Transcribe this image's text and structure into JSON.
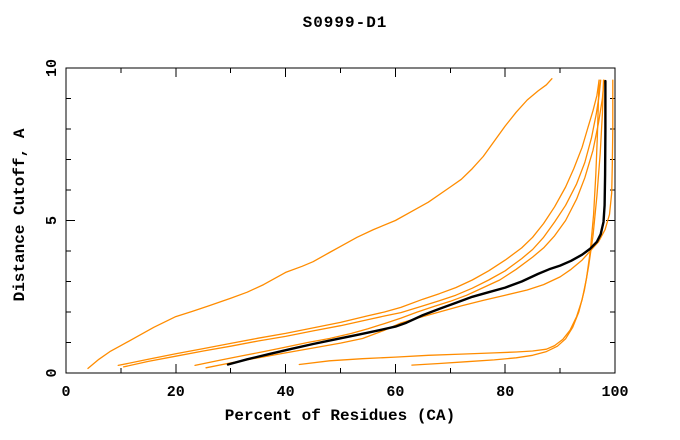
{
  "window": {
    "background": "#ffffff"
  },
  "chart_data": {
    "type": "line",
    "title": "S0999-D1",
    "xlabel": "Percent of Residues (CA)",
    "ylabel": "Distance Cutoff, A",
    "xlim": [
      0,
      100
    ],
    "ylim": [
      0,
      10
    ],
    "x_major_ticks": [
      0,
      20,
      40,
      60,
      80,
      100
    ],
    "x_minor_ticks": [
      10,
      30,
      50,
      70,
      90
    ],
    "y_major_ticks": [
      0,
      5,
      10
    ],
    "y_minor_ticks": [
      1,
      2,
      3,
      4,
      6,
      7,
      8,
      9
    ],
    "grid": false,
    "legend": "none",
    "frame": "box-with-mirrored-ticks",
    "axis_color": "#000000",
    "model_color": "#ff8c00",
    "highlight_color": "#000000",
    "series": [
      {
        "name": "model-steep",
        "color": "#ff8c00",
        "width": 1.3,
        "points": [
          [
            4,
            0.15
          ],
          [
            6,
            0.45
          ],
          [
            8,
            0.7
          ],
          [
            10,
            0.9
          ],
          [
            13,
            1.2
          ],
          [
            16,
            1.5
          ],
          [
            20,
            1.85
          ],
          [
            23,
            2.02
          ],
          [
            26,
            2.2
          ],
          [
            30,
            2.45
          ],
          [
            33,
            2.65
          ],
          [
            36,
            2.9
          ],
          [
            40,
            3.3
          ],
          [
            43,
            3.5
          ],
          [
            45,
            3.65
          ],
          [
            48,
            3.95
          ],
          [
            50,
            4.15
          ],
          [
            53,
            4.45
          ],
          [
            56,
            4.7
          ],
          [
            60,
            5.0
          ],
          [
            63,
            5.3
          ],
          [
            66,
            5.6
          ],
          [
            70,
            6.1
          ],
          [
            72,
            6.35
          ],
          [
            74,
            6.7
          ],
          [
            76,
            7.1
          ],
          [
            78,
            7.6
          ],
          [
            80,
            8.1
          ],
          [
            82,
            8.55
          ],
          [
            84,
            8.95
          ],
          [
            86,
            9.25
          ],
          [
            87.5,
            9.45
          ],
          [
            88.5,
            9.65
          ]
        ]
      },
      {
        "name": "model-b1",
        "color": "#ff8c00",
        "width": 1.3,
        "points": [
          [
            9.5,
            0.25
          ],
          [
            15,
            0.45
          ],
          [
            20,
            0.63
          ],
          [
            25,
            0.8
          ],
          [
            30,
            0.97
          ],
          [
            35,
            1.14
          ],
          [
            40,
            1.3
          ],
          [
            45,
            1.48
          ],
          [
            50,
            1.66
          ],
          [
            55,
            1.88
          ],
          [
            58,
            2.0
          ],
          [
            61,
            2.15
          ],
          [
            65,
            2.42
          ],
          [
            68,
            2.6
          ],
          [
            71,
            2.8
          ],
          [
            74,
            3.05
          ],
          [
            77,
            3.35
          ],
          [
            80,
            3.7
          ],
          [
            83,
            4.1
          ],
          [
            85,
            4.45
          ],
          [
            87,
            4.9
          ],
          [
            89,
            5.45
          ],
          [
            91,
            6.1
          ],
          [
            92.5,
            6.7
          ],
          [
            94,
            7.4
          ],
          [
            95,
            8.0
          ],
          [
            96,
            8.6
          ],
          [
            96.7,
            9.1
          ],
          [
            97.1,
            9.6
          ]
        ]
      },
      {
        "name": "model-b2",
        "color": "#ff8c00",
        "width": 1.3,
        "points": [
          [
            10.5,
            0.2
          ],
          [
            15,
            0.38
          ],
          [
            20,
            0.55
          ],
          [
            25,
            0.72
          ],
          [
            30,
            0.88
          ],
          [
            35,
            1.05
          ],
          [
            40,
            1.2
          ],
          [
            45,
            1.38
          ],
          [
            50,
            1.55
          ],
          [
            55,
            1.75
          ],
          [
            58,
            1.87
          ],
          [
            61,
            1.98
          ],
          [
            65,
            2.2
          ],
          [
            68,
            2.37
          ],
          [
            71,
            2.55
          ],
          [
            74,
            2.78
          ],
          [
            77,
            3.05
          ],
          [
            80,
            3.35
          ],
          [
            83,
            3.75
          ],
          [
            85,
            4.05
          ],
          [
            87,
            4.45
          ],
          [
            89,
            4.95
          ],
          [
            91,
            5.5
          ],
          [
            93,
            6.2
          ],
          [
            94.5,
            6.9
          ],
          [
            95.7,
            7.7
          ],
          [
            96.6,
            8.5
          ],
          [
            97.1,
            9.1
          ],
          [
            97.4,
            9.6
          ]
        ]
      },
      {
        "name": "model-c",
        "color": "#ff8c00",
        "width": 1.3,
        "points": [
          [
            23.5,
            0.25
          ],
          [
            28,
            0.42
          ],
          [
            32,
            0.56
          ],
          [
            36,
            0.7
          ],
          [
            40,
            0.85
          ],
          [
            44,
            1.0
          ],
          [
            48,
            1.13
          ],
          [
            52,
            1.3
          ],
          [
            55,
            1.45
          ],
          [
            58,
            1.62
          ],
          [
            61,
            1.8
          ],
          [
            64,
            2.0
          ],
          [
            67,
            2.18
          ],
          [
            70,
            2.35
          ],
          [
            73,
            2.55
          ],
          [
            76,
            2.8
          ],
          [
            79,
            3.05
          ],
          [
            82,
            3.4
          ],
          [
            85,
            3.8
          ],
          [
            87,
            4.1
          ],
          [
            89,
            4.5
          ],
          [
            91,
            5.0
          ],
          [
            93,
            5.7
          ],
          [
            94.5,
            6.4
          ],
          [
            96,
            7.3
          ],
          [
            97,
            8.2
          ],
          [
            97.7,
            9.0
          ],
          [
            98,
            9.6
          ]
        ]
      },
      {
        "name": "model-d",
        "color": "#ff8c00",
        "width": 1.3,
        "points": [
          [
            25.5,
            0.17
          ],
          [
            30,
            0.33
          ],
          [
            35,
            0.5
          ],
          [
            40,
            0.66
          ],
          [
            45,
            0.82
          ],
          [
            50,
            0.98
          ],
          [
            54,
            1.13
          ],
          [
            58,
            1.4
          ],
          [
            61,
            1.64
          ],
          [
            64,
            1.8
          ],
          [
            68,
            2.0
          ],
          [
            72,
            2.2
          ],
          [
            76,
            2.38
          ],
          [
            80,
            2.55
          ],
          [
            84,
            2.72
          ],
          [
            87,
            2.9
          ],
          [
            90,
            3.15
          ],
          [
            92,
            3.4
          ],
          [
            94,
            3.7
          ],
          [
            95.5,
            4.0
          ],
          [
            97,
            4.3
          ],
          [
            98.2,
            4.7
          ],
          [
            99,
            5.2
          ],
          [
            99.4,
            5.9
          ],
          [
            99.5,
            6.8
          ],
          [
            99.6,
            8.0
          ],
          [
            99.6,
            9.6
          ]
        ]
      },
      {
        "name": "model-low-f",
        "color": "#ff8c00",
        "width": 1.3,
        "points": [
          [
            42.5,
            0.28
          ],
          [
            48,
            0.4
          ],
          [
            54,
            0.47
          ],
          [
            60,
            0.52
          ],
          [
            66,
            0.58
          ],
          [
            72,
            0.62
          ],
          [
            78,
            0.66
          ],
          [
            82,
            0.69
          ],
          [
            85,
            0.72
          ],
          [
            87.5,
            0.78
          ],
          [
            89,
            0.9
          ],
          [
            90.5,
            1.1
          ],
          [
            91.8,
            1.4
          ],
          [
            93,
            1.85
          ],
          [
            94,
            2.4
          ],
          [
            94.8,
            3.1
          ],
          [
            95.5,
            4.0
          ],
          [
            96.1,
            5.2
          ],
          [
            96.5,
            6.5
          ],
          [
            96.8,
            7.8
          ],
          [
            97,
            9.0
          ],
          [
            97.1,
            9.6
          ]
        ]
      },
      {
        "name": "model-low-g",
        "color": "#ff8c00",
        "width": 1.3,
        "points": [
          [
            63,
            0.26
          ],
          [
            68,
            0.31
          ],
          [
            73,
            0.37
          ],
          [
            78,
            0.43
          ],
          [
            82,
            0.5
          ],
          [
            85,
            0.58
          ],
          [
            87.5,
            0.7
          ],
          [
            89.5,
            0.88
          ],
          [
            91,
            1.12
          ],
          [
            92.3,
            1.5
          ],
          [
            93.4,
            2.0
          ],
          [
            94.4,
            2.7
          ],
          [
            95.2,
            3.5
          ],
          [
            96,
            4.5
          ],
          [
            96.7,
            5.8
          ],
          [
            97.3,
            7.2
          ],
          [
            97.7,
            8.5
          ],
          [
            97.9,
            9.6
          ]
        ]
      },
      {
        "name": "highlighted-model",
        "color": "#000000",
        "width": 2.4,
        "points": [
          [
            29.5,
            0.28
          ],
          [
            33,
            0.45
          ],
          [
            37,
            0.62
          ],
          [
            41,
            0.79
          ],
          [
            45,
            0.95
          ],
          [
            49,
            1.1
          ],
          [
            53,
            1.25
          ],
          [
            57,
            1.4
          ],
          [
            60,
            1.52
          ],
          [
            62,
            1.65
          ],
          [
            65,
            1.9
          ],
          [
            68,
            2.1
          ],
          [
            71,
            2.3
          ],
          [
            74,
            2.5
          ],
          [
            77,
            2.65
          ],
          [
            80,
            2.8
          ],
          [
            83,
            3.0
          ],
          [
            86,
            3.25
          ],
          [
            88,
            3.4
          ],
          [
            90,
            3.52
          ],
          [
            92,
            3.68
          ],
          [
            94,
            3.88
          ],
          [
            95.5,
            4.08
          ],
          [
            96.7,
            4.3
          ],
          [
            97.4,
            4.55
          ],
          [
            97.9,
            4.95
          ],
          [
            98.1,
            5.5
          ],
          [
            98.2,
            6.5
          ],
          [
            98.25,
            8.0
          ],
          [
            98.25,
            9.57
          ]
        ]
      }
    ]
  }
}
